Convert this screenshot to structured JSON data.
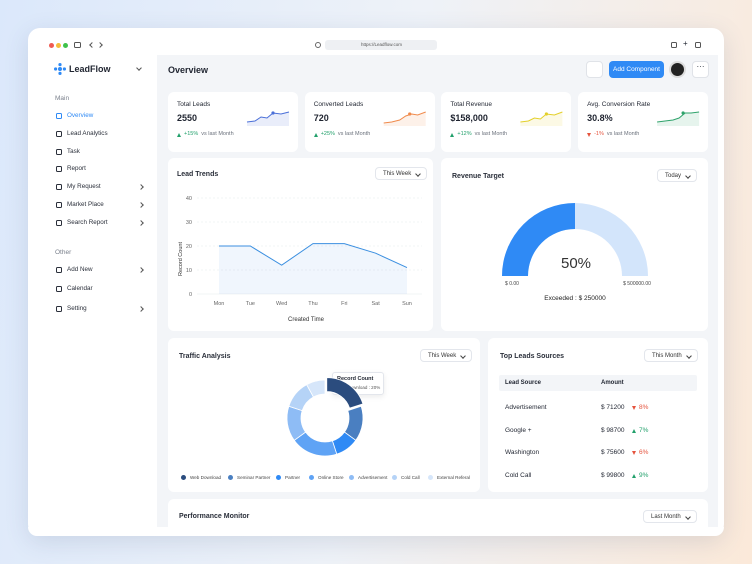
{
  "browser": {
    "url": "https://Leadflow.com"
  },
  "sidebar": {
    "brand": "LeadFlow",
    "sections": [
      {
        "title": "Main",
        "items": [
          {
            "label": "Overview",
            "active": true
          },
          {
            "label": "Lead Analytics"
          },
          {
            "label": "Task"
          },
          {
            "label": "Report"
          },
          {
            "label": "My Request",
            "submenu": true
          },
          {
            "label": "Market Place",
            "submenu": true
          },
          {
            "label": "Search Report",
            "submenu": true
          }
        ]
      },
      {
        "title": "Other",
        "items": [
          {
            "label": "Add New",
            "submenu": true
          },
          {
            "label": "Calendar"
          },
          {
            "label": "Setting",
            "submenu": true
          }
        ]
      }
    ]
  },
  "header": {
    "title": "Overview",
    "button": "Add Component"
  },
  "stats": [
    {
      "label": "Total Leads",
      "value": "2550",
      "change": "+15%",
      "note": "vs last Month",
      "trend": "up",
      "color": "#4a6fd8"
    },
    {
      "label": "Converted Leads",
      "value": "720",
      "change": "+25%",
      "note": "vs last Month",
      "trend": "up",
      "color": "#f08a4b"
    },
    {
      "label": "Total Revenue",
      "value": "$158,000",
      "change": "+12%",
      "note": "vs last Month",
      "trend": "up",
      "color": "#e3d02a"
    },
    {
      "label": "Avg. Conversion Rate",
      "value": "30.8%",
      "change": "-1%",
      "note": "vs last Month",
      "trend": "down",
      "color": "#2fa36b"
    }
  ],
  "lead_trends": {
    "type": "line",
    "title": "Lead Trends",
    "filter": "This Week",
    "categories": [
      "Mon",
      "Tue",
      "Wed",
      "Thu",
      "Fri",
      "Sat",
      "Sun"
    ],
    "values": [
      20,
      20,
      12,
      21,
      21,
      17,
      11
    ],
    "color": "#3b8fe0",
    "ylim": [
      0,
      40
    ],
    "yticks": [
      0,
      10,
      20,
      30,
      40
    ],
    "y_label": "Record Count",
    "x_label": "Created Time",
    "grid": true
  },
  "revenue_target": {
    "type": "gauge",
    "title": "Revenue Target",
    "filter": "Today",
    "value": 50,
    "value_label": "50%",
    "min_label": "$ 0.00",
    "max_label": "$ 500000.00",
    "note": "Exceeded : $ 250000",
    "color": "#2f8af5",
    "track_color": "#d3e5fb"
  },
  "traffic_analysis": {
    "type": "donut",
    "title": "Traffic Analysis",
    "filter": "This Week",
    "tooltip": {
      "title": "Record Count",
      "text": "Web Download : 20%"
    },
    "categories": [
      "Web Download",
      "Seminar Partner",
      "Partner",
      "Online Store",
      "Advertisement",
      "Cold Call",
      "External Referal"
    ],
    "values": [
      20,
      15,
      10,
      20,
      15,
      12,
      8
    ],
    "colors": [
      "#2b4c7e",
      "#4a7fc1",
      "#2f8af5",
      "#5fa3f5",
      "#8ebcf5",
      "#b5d3f7",
      "#d6e6fa"
    ]
  },
  "top_leads": {
    "title": "Top Leads Sources",
    "filter": "This Month",
    "columns": [
      "Lead Source",
      "Amount"
    ],
    "rows": [
      {
        "source": "Advertisement",
        "amount": "$ 71200",
        "change": "8%",
        "trend": "down"
      },
      {
        "source": "Google +",
        "amount": "$ 98700",
        "change": "7%",
        "trend": "up"
      },
      {
        "source": "Washington",
        "amount": "$ 75600",
        "change": "6%",
        "trend": "down"
      },
      {
        "source": "Cold Call",
        "amount": "$ 99800",
        "change": "9%",
        "trend": "up"
      }
    ]
  },
  "performance": {
    "title": "Performance Monitor",
    "filter": "Last Month"
  }
}
